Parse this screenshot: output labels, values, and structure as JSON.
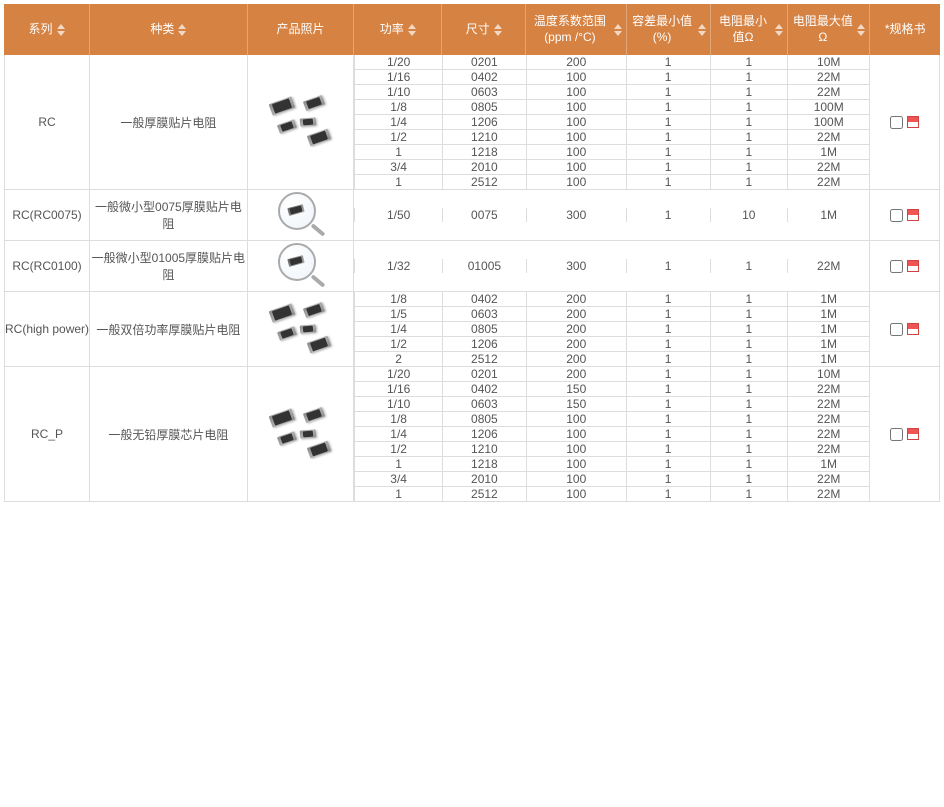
{
  "columns": {
    "series": "系列",
    "type": "种类",
    "photo": "产品照片",
    "power": "功率",
    "size": "尺寸",
    "temp": "温度系数范围 (ppm /°C)",
    "tol": "容差最小值(%)",
    "rmin": "电阻最小值Ω",
    "rmax": "电阻最大值Ω",
    "spec": "*规格书"
  },
  "groups": [
    {
      "series": "RC",
      "type": "一般厚膜贴片电阻",
      "photo": "chips",
      "rows": [
        {
          "power": "1/20",
          "size": "0201",
          "temp": "200",
          "tol": "1",
          "rmin": "1",
          "rmax": "10M"
        },
        {
          "power": "1/16",
          "size": "0402",
          "temp": "100",
          "tol": "1",
          "rmin": "1",
          "rmax": "22M"
        },
        {
          "power": "1/10",
          "size": "0603",
          "temp": "100",
          "tol": "1",
          "rmin": "1",
          "rmax": "22M"
        },
        {
          "power": "1/8",
          "size": "0805",
          "temp": "100",
          "tol": "1",
          "rmin": "1",
          "rmax": "100M"
        },
        {
          "power": "1/4",
          "size": "1206",
          "temp": "100",
          "tol": "1",
          "rmin": "1",
          "rmax": "100M"
        },
        {
          "power": "1/2",
          "size": "1210",
          "temp": "100",
          "tol": "1",
          "rmin": "1",
          "rmax": "22M"
        },
        {
          "power": "1",
          "size": "1218",
          "temp": "100",
          "tol": "1",
          "rmin": "1",
          "rmax": "1M"
        },
        {
          "power": "3/4",
          "size": "2010",
          "temp": "100",
          "tol": "1",
          "rmin": "1",
          "rmax": "22M"
        },
        {
          "power": "1",
          "size": "2512",
          "temp": "100",
          "tol": "1",
          "rmin": "1",
          "rmax": "22M"
        }
      ]
    },
    {
      "series": "RC(RC0075)",
      "type": "一般微小型0075厚膜贴片电阻",
      "photo": "magnifier",
      "rows": [
        {
          "power": "1/50",
          "size": "0075",
          "temp": "300",
          "tol": "1",
          "rmin": "10",
          "rmax": "1M"
        }
      ]
    },
    {
      "series": "RC(RC0100)",
      "type": "一般微小型01005厚膜贴片电阻",
      "photo": "magnifier",
      "rows": [
        {
          "power": "1/32",
          "size": "01005",
          "temp": "300",
          "tol": "1",
          "rmin": "1",
          "rmax": "22M"
        }
      ]
    },
    {
      "series": "RC(high power)",
      "type": "一般双倍功率厚膜贴片电阻",
      "photo": "chips",
      "rows": [
        {
          "power": "1/8",
          "size": "0402",
          "temp": "200",
          "tol": "1",
          "rmin": "1",
          "rmax": "1M"
        },
        {
          "power": "1/5",
          "size": "0603",
          "temp": "200",
          "tol": "1",
          "rmin": "1",
          "rmax": "1M"
        },
        {
          "power": "1/4",
          "size": "0805",
          "temp": "200",
          "tol": "1",
          "rmin": "1",
          "rmax": "1M"
        },
        {
          "power": "1/2",
          "size": "1206",
          "temp": "200",
          "tol": "1",
          "rmin": "1",
          "rmax": "1M"
        },
        {
          "power": "2",
          "size": "2512",
          "temp": "200",
          "tol": "1",
          "rmin": "1",
          "rmax": "1M"
        }
      ]
    },
    {
      "series": "RC_P",
      "type": "一般无铅厚膜芯片电阻",
      "photo": "chips",
      "rows": [
        {
          "power": "1/20",
          "size": "0201",
          "temp": "200",
          "tol": "1",
          "rmin": "1",
          "rmax": "10M"
        },
        {
          "power": "1/16",
          "size": "0402",
          "temp": "150",
          "tol": "1",
          "rmin": "1",
          "rmax": "22M"
        },
        {
          "power": "1/10",
          "size": "0603",
          "temp": "150",
          "tol": "1",
          "rmin": "1",
          "rmax": "22M"
        },
        {
          "power": "1/8",
          "size": "0805",
          "temp": "100",
          "tol": "1",
          "rmin": "1",
          "rmax": "22M"
        },
        {
          "power": "1/4",
          "size": "1206",
          "temp": "100",
          "tol": "1",
          "rmin": "1",
          "rmax": "22M"
        },
        {
          "power": "1/2",
          "size": "1210",
          "temp": "100",
          "tol": "1",
          "rmin": "1",
          "rmax": "22M"
        },
        {
          "power": "1",
          "size": "1218",
          "temp": "100",
          "tol": "1",
          "rmin": "1",
          "rmax": "1M"
        },
        {
          "power": "3/4",
          "size": "2010",
          "temp": "100",
          "tol": "1",
          "rmin": "1",
          "rmax": "22M"
        },
        {
          "power": "1",
          "size": "2512",
          "temp": "100",
          "tol": "1",
          "rmin": "1",
          "rmax": "22M"
        }
      ]
    }
  ],
  "style": {
    "header_bg": "#d58242",
    "header_border": "#e0a878",
    "cell_border": "#dddddd",
    "text_color": "#555555"
  }
}
